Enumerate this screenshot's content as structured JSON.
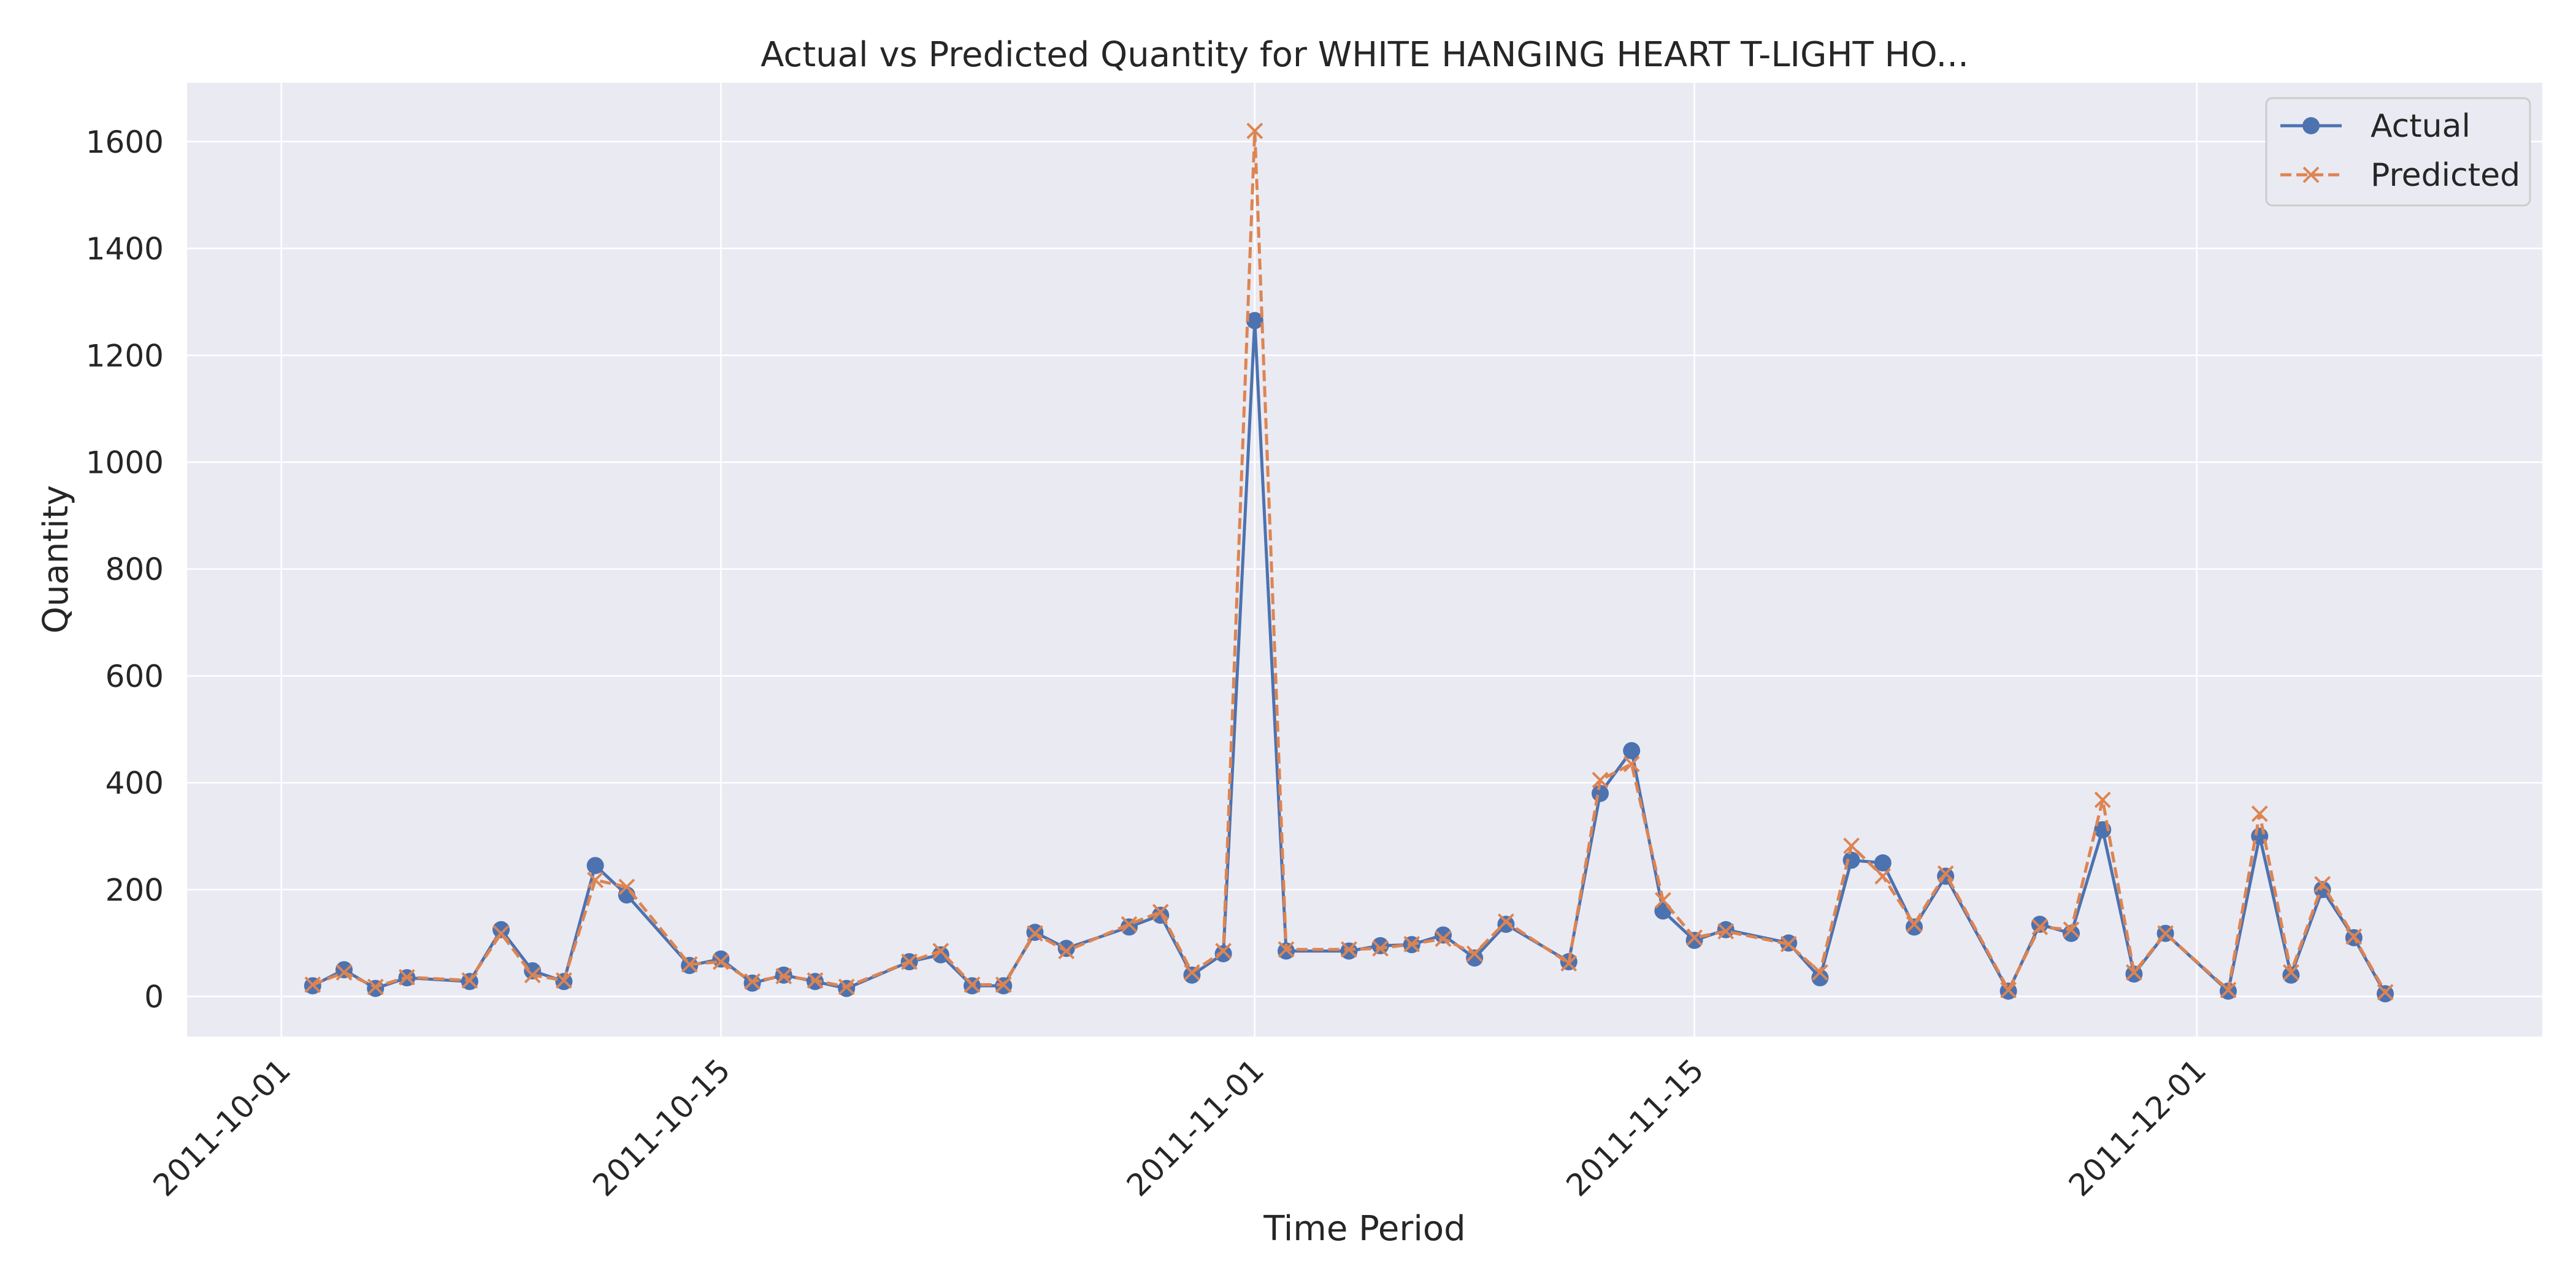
{
  "chart_data": {
    "type": "line",
    "title": "Actual vs Predicted Quantity for WHITE HANGING HEART T-LIGHT HO...",
    "xlabel": "Time Period",
    "ylabel": "Quantity",
    "x_tick_labels": [
      "2011-10-01",
      "2011-10-15",
      "2011-11-01",
      "2011-11-15",
      "2011-12-01"
    ],
    "y_ticks": [
      0,
      200,
      400,
      600,
      800,
      1000,
      1200,
      1400,
      1600
    ],
    "xlim": [
      "2011-09-28",
      "2011-12-12"
    ],
    "ylim": [
      -75,
      1710
    ],
    "grid": true,
    "legend_position": "top-right",
    "colors": {
      "background": "#eaeaf2",
      "grid": "#ffffff",
      "actual": "#4c72b0",
      "predicted": "#dd8452"
    },
    "x": [
      "2011-10-02",
      "2011-10-03",
      "2011-10-04",
      "2011-10-05",
      "2011-10-07",
      "2011-10-08",
      "2011-10-09",
      "2011-10-10",
      "2011-10-11",
      "2011-10-12",
      "2011-10-14",
      "2011-10-15",
      "2011-10-16",
      "2011-10-17",
      "2011-10-18",
      "2011-10-19",
      "2011-10-21",
      "2011-10-22",
      "2011-10-23",
      "2011-10-24",
      "2011-10-25",
      "2011-10-26",
      "2011-10-28",
      "2011-10-29",
      "2011-10-30",
      "2011-10-31",
      "2011-11-01",
      "2011-11-02",
      "2011-11-04",
      "2011-11-05",
      "2011-11-06",
      "2011-11-07",
      "2011-11-08",
      "2011-11-09",
      "2011-11-11",
      "2011-11-12",
      "2011-11-13",
      "2011-11-14",
      "2011-11-15",
      "2011-11-16",
      "2011-11-18",
      "2011-11-19",
      "2011-11-20",
      "2011-11-21",
      "2011-11-22",
      "2011-11-23",
      "2011-11-25",
      "2011-11-26",
      "2011-11-27",
      "2011-11-28",
      "2011-11-29",
      "2011-11-30",
      "2011-12-02",
      "2011-12-03",
      "2011-12-04",
      "2011-12-05",
      "2011-12-06",
      "2011-12-07"
    ],
    "series": [
      {
        "name": "Actual",
        "marker": "circle",
        "line_style": "solid",
        "values": [
          20,
          50,
          15,
          35,
          28,
          125,
          48,
          28,
          245,
          190,
          58,
          70,
          25,
          40,
          28,
          15,
          65,
          78,
          20,
          20,
          120,
          90,
          130,
          152,
          40,
          80,
          1265,
          85,
          85,
          95,
          97,
          115,
          72,
          135,
          65,
          380,
          460,
          160,
          105,
          125,
          100,
          35,
          255,
          250,
          130,
          225,
          10,
          135,
          118,
          312,
          42,
          118,
          10,
          300,
          40,
          200,
          110,
          5
        ]
      },
      {
        "name": "Predicted",
        "marker": "x",
        "line_style": "dashed",
        "values": [
          22,
          45,
          18,
          36,
          30,
          118,
          40,
          30,
          218,
          205,
          60,
          65,
          28,
          38,
          30,
          18,
          65,
          85,
          22,
          22,
          118,
          85,
          135,
          158,
          45,
          85,
          1620,
          88,
          88,
          90,
          98,
          108,
          80,
          140,
          62,
          405,
          435,
          180,
          110,
          122,
          98,
          45,
          282,
          225,
          135,
          230,
          12,
          130,
          125,
          368,
          45,
          118,
          12,
          342,
          45,
          210,
          112,
          8
        ]
      }
    ]
  }
}
